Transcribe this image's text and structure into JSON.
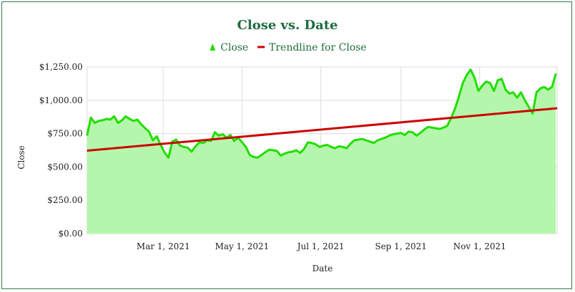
{
  "chart_data": {
    "type": "area",
    "title": "Close vs. Date",
    "xlabel": "Date",
    "ylabel": "Close",
    "x_range": [
      "2021-01-01",
      "2021-12-31"
    ],
    "x_ticks": [
      {
        "date": "2021-03-01",
        "label": "Mar 1, 2021"
      },
      {
        "date": "2021-05-01",
        "label": "May 1, 2021"
      },
      {
        "date": "2021-07-01",
        "label": "Jul 1, 2021"
      },
      {
        "date": "2021-09-01",
        "label": "Sep 1, 2021"
      },
      {
        "date": "2021-11-01",
        "label": "Nov 1, 2021"
      }
    ],
    "ylim": [
      0,
      1250
    ],
    "y_ticks": [
      {
        "value": 0,
        "label": "$0.00"
      },
      {
        "value": 250,
        "label": "$250.00"
      },
      {
        "value": 500,
        "label": "$500.00"
      },
      {
        "value": 750,
        "label": "$750.00"
      },
      {
        "value": 1000,
        "label": "$1,000.00"
      },
      {
        "value": 1250,
        "label": "$1,250.00"
      }
    ],
    "legend_position": "top",
    "series": [
      {
        "name": "Close",
        "color": "#22dd00",
        "fill": "#b4f7ac",
        "x": [
          "2021-01-01",
          "2021-01-04",
          "2021-01-07",
          "2021-01-10",
          "2021-01-13",
          "2021-01-16",
          "2021-01-19",
          "2021-01-22",
          "2021-01-25",
          "2021-01-28",
          "2021-01-31",
          "2021-02-03",
          "2021-02-06",
          "2021-02-09",
          "2021-02-12",
          "2021-02-15",
          "2021-02-18",
          "2021-02-21",
          "2021-02-24",
          "2021-02-27",
          "2021-03-02",
          "2021-03-05",
          "2021-03-08",
          "2021-03-11",
          "2021-03-14",
          "2021-03-17",
          "2021-03-20",
          "2021-03-23",
          "2021-03-26",
          "2021-03-29",
          "2021-04-01",
          "2021-04-04",
          "2021-04-07",
          "2021-04-10",
          "2021-04-13",
          "2021-04-16",
          "2021-04-19",
          "2021-04-22",
          "2021-04-25",
          "2021-04-28",
          "2021-05-01",
          "2021-05-04",
          "2021-05-07",
          "2021-05-10",
          "2021-05-13",
          "2021-05-16",
          "2021-05-19",
          "2021-05-22",
          "2021-05-25",
          "2021-05-28",
          "2021-05-31",
          "2021-06-03",
          "2021-06-06",
          "2021-06-09",
          "2021-06-12",
          "2021-06-15",
          "2021-06-18",
          "2021-06-21",
          "2021-06-24",
          "2021-06-27",
          "2021-06-30",
          "2021-07-03",
          "2021-07-06",
          "2021-07-09",
          "2021-07-12",
          "2021-07-15",
          "2021-07-18",
          "2021-07-21",
          "2021-07-24",
          "2021-07-27",
          "2021-07-30",
          "2021-08-02",
          "2021-08-05",
          "2021-08-08",
          "2021-08-11",
          "2021-08-14",
          "2021-08-17",
          "2021-08-20",
          "2021-08-23",
          "2021-08-26",
          "2021-08-29",
          "2021-09-01",
          "2021-09-04",
          "2021-09-07",
          "2021-09-10",
          "2021-09-13",
          "2021-09-16",
          "2021-09-19",
          "2021-09-22",
          "2021-09-25",
          "2021-09-28",
          "2021-10-01",
          "2021-10-04",
          "2021-10-07",
          "2021-10-10",
          "2021-10-13",
          "2021-10-16",
          "2021-10-19",
          "2021-10-22",
          "2021-10-25",
          "2021-10-28",
          "2021-10-31",
          "2021-11-03",
          "2021-11-06",
          "2021-11-09",
          "2021-11-12",
          "2021-11-15",
          "2021-11-18",
          "2021-11-21",
          "2021-11-24",
          "2021-11-27",
          "2021-11-30",
          "2021-12-03",
          "2021-12-06",
          "2021-12-09",
          "2021-12-12",
          "2021-12-15",
          "2021-12-18",
          "2021-12-21",
          "2021-12-24",
          "2021-12-27",
          "2021-12-30"
        ],
        "values": [
          735,
          870,
          830,
          845,
          850,
          860,
          855,
          880,
          830,
          850,
          880,
          860,
          845,
          855,
          820,
          790,
          765,
          700,
          730,
          665,
          610,
          570,
          690,
          705,
          660,
          650,
          645,
          615,
          655,
          685,
          680,
          700,
          695,
          760,
          735,
          745,
          720,
          740,
          695,
          720,
          685,
          650,
          590,
          575,
          570,
          590,
          610,
          630,
          625,
          620,
          585,
          600,
          610,
          615,
          625,
          605,
          635,
          685,
          680,
          670,
          650,
          660,
          665,
          650,
          640,
          655,
          650,
          640,
          675,
          700,
          705,
          710,
          700,
          690,
          680,
          700,
          710,
          720,
          735,
          745,
          750,
          755,
          740,
          765,
          760,
          735,
          755,
          780,
          800,
          795,
          790,
          785,
          795,
          810,
          870,
          940,
          1030,
          1130,
          1190,
          1230,
          1170,
          1070,
          1110,
          1140,
          1130,
          1070,
          1150,
          1160,
          1080,
          1050,
          1060,
          1020,
          1060,
          1000,
          950,
          900,
          1060,
          1090,
          1100,
          1080,
          1100,
          1200
        ]
      }
    ],
    "trendline": {
      "name": "Trendline for Close",
      "color": "#cc0000",
      "x": [
        "2021-01-01",
        "2021-12-31"
      ],
      "values": [
        622,
        940
      ]
    }
  }
}
